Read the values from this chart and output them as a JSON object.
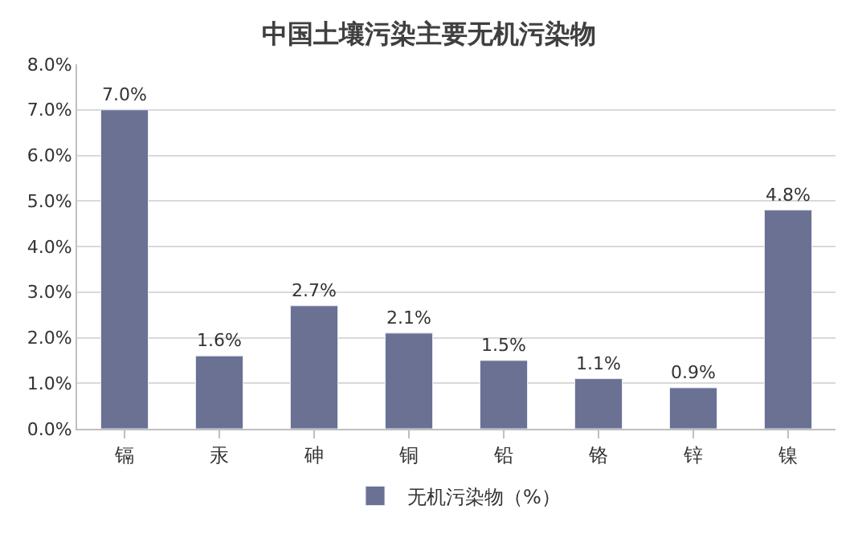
{
  "chart_data": {
    "type": "bar",
    "title": "中国土壤污染主要无机污染物",
    "categories": [
      "镉",
      "汞",
      "砷",
      "铜",
      "铅",
      "铬",
      "锌",
      "镍"
    ],
    "series": [
      {
        "name": "无机污染物（%）",
        "color": "#6b7193",
        "values": [
          7.0,
          1.6,
          2.7,
          2.1,
          1.5,
          1.1,
          0.9,
          4.8
        ],
        "value_labels": [
          "7.0%",
          "1.6%",
          "2.7%",
          "2.1%",
          "1.5%",
          "1.1%",
          "0.9%",
          "4.8%"
        ]
      }
    ],
    "ylim": [
      0,
      8
    ],
    "yticks": [
      {
        "value": 0,
        "label": "0.0%"
      },
      {
        "value": 1,
        "label": "1.0%"
      },
      {
        "value": 2,
        "label": "2.0%"
      },
      {
        "value": 3,
        "label": "3.0%"
      },
      {
        "value": 4,
        "label": "4.0%"
      },
      {
        "value": 5,
        "label": "5.0%"
      },
      {
        "value": 6,
        "label": "6.0%"
      },
      {
        "value": 7,
        "label": "7.0%"
      },
      {
        "value": 8,
        "label": "8.0%"
      }
    ],
    "grid": "y",
    "legend": "bottom"
  }
}
